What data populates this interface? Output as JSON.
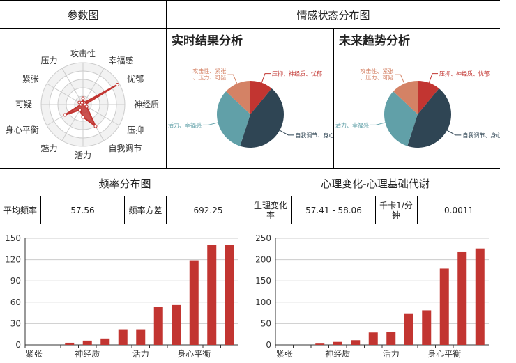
{
  "sections": {
    "params_title": "参数图",
    "emotion_title": "情感状态分布图",
    "freq_title": "频率分布图",
    "psych_title": "心理变化-心理基础代谢"
  },
  "emotion": {
    "realtime_title": "实时结果分析",
    "future_title": "未来趋势分析"
  },
  "freq_stats": {
    "mean_label": "平均频率",
    "mean_value": "57.56",
    "var_label": "频率方差",
    "var_value": "692.25"
  },
  "psych_stats": {
    "rate_label": "生理变化率",
    "rate_value": "57.41 - 58.06",
    "unit_label": "千卡1/分钟",
    "unit_value": "0.0011"
  },
  "colors": {
    "red": "#c23531",
    "navy": "#2f4554",
    "teal": "#61a0a8",
    "salmon": "#d48265",
    "gray_line": "#cccccc"
  },
  "chart_data": [
    {
      "type": "radar",
      "indicators": [
        "攻击性",
        "幸福感",
        "忧郁",
        "神经质",
        "压抑",
        "自我调节",
        "活力",
        "魅力",
        "身心平衡",
        "可疑",
        "紧张",
        "压力"
      ],
      "values": [
        0.15,
        0.05,
        0.95,
        0.05,
        0.1,
        0.6,
        0.3,
        0.15,
        0.5,
        0.05,
        0.1,
        0.05
      ]
    },
    {
      "type": "pie",
      "slices": [
        {
          "name": "压抑、神经质、忧郁",
          "value": 11
        },
        {
          "name": "自我调节、身心平衡",
          "value": 44
        },
        {
          "name": "魅力、活力、幸福感",
          "value": 32
        },
        {
          "name": "攻击性、紧张、压力、可疑",
          "value": 13
        }
      ]
    },
    {
      "type": "pie",
      "slices": [
        {
          "name": "压抑、神经质、忧郁",
          "value": 11
        },
        {
          "name": "自我调节、身心平衡",
          "value": 44
        },
        {
          "name": "魅力、活力、幸福感",
          "value": 32
        },
        {
          "name": "攻击性、紧张、压力、可疑",
          "value": 13
        }
      ]
    },
    {
      "type": "bar",
      "categories": [
        "紧张",
        "",
        "",
        "神经质",
        "",
        "",
        "活力",
        "",
        "",
        "身心平衡",
        "",
        ""
      ],
      "values": [
        0,
        0,
        3,
        6,
        9,
        22,
        22,
        53,
        56,
        119,
        141,
        141
      ],
      "ylim": [
        0,
        150
      ],
      "yticks": [
        0,
        30,
        60,
        90,
        120,
        150
      ],
      "color": "#c23531"
    },
    {
      "type": "bar",
      "categories": [
        "紧张",
        "",
        "",
        "神经质",
        "",
        "",
        "活力",
        "",
        "",
        "身心平衡",
        "",
        ""
      ],
      "values": [
        0,
        0,
        3,
        7,
        11,
        29,
        30,
        74,
        81,
        179,
        219,
        226
      ],
      "ylim": [
        0,
        250
      ],
      "yticks": [
        0,
        50,
        100,
        150,
        200,
        250
      ],
      "color": "#c23531"
    }
  ]
}
